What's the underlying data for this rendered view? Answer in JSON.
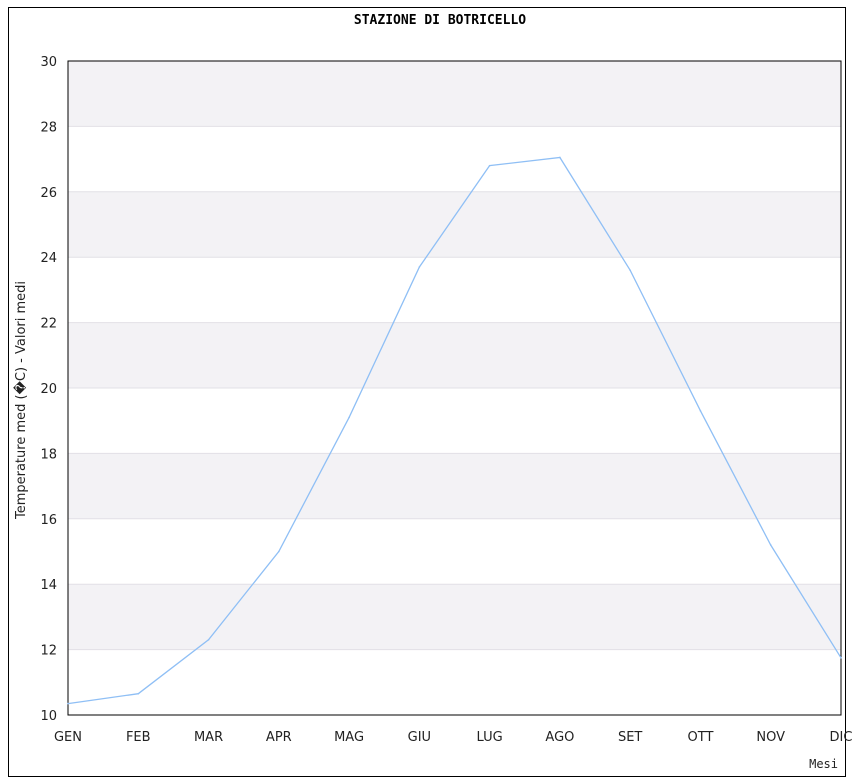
{
  "chart_data": {
    "type": "line",
    "title": "STAZIONE DI BOTRICELLO",
    "xlabel": "Mesi",
    "ylabel": "Temperature med (�C) - Valori medi",
    "categories": [
      "GEN",
      "FEB",
      "MAR",
      "APR",
      "MAG",
      "GIU",
      "LUG",
      "AGO",
      "SET",
      "OTT",
      "NOV",
      "DIC"
    ],
    "series": [
      {
        "values": [
          10.35,
          10.65,
          12.3,
          15.0,
          19.1,
          23.7,
          26.8,
          27.05,
          23.6,
          19.3,
          15.2,
          11.75
        ]
      }
    ],
    "ylim": [
      10,
      30
    ],
    "yticks": [
      10,
      12,
      14,
      16,
      18,
      20,
      22,
      24,
      26,
      28,
      30
    ],
    "grid": true,
    "colors": {
      "line": "#8fbff5",
      "band": "#f3f2f5",
      "grid": "#e2e0e6"
    }
  }
}
